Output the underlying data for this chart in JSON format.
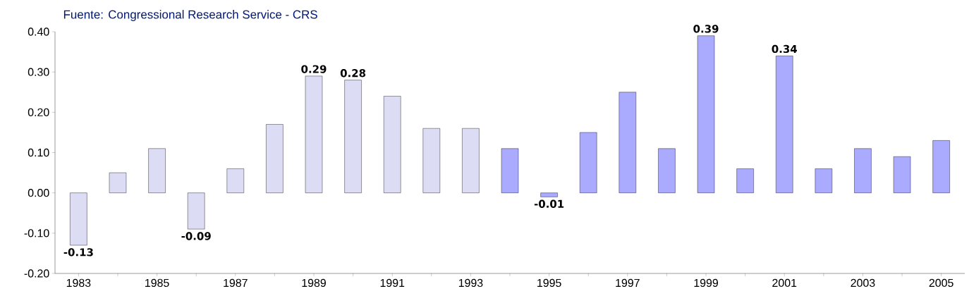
{
  "chart_data": {
    "type": "bar",
    "title": "Fuente: Congressional Research Service - CRS",
    "categories": [
      "1983",
      null,
      "1985",
      null,
      "1987",
      null,
      "1989",
      null,
      "1991",
      null,
      "1993",
      null,
      "1995",
      null,
      "1997",
      null,
      "1999",
      null,
      "2001",
      null,
      "2003",
      null,
      "2005"
    ],
    "values": [
      -0.13,
      0.05,
      0.11,
      -0.09,
      0.06,
      0.17,
      0.29,
      0.28,
      0.24,
      0.16,
      0.16,
      0.11,
      -0.01,
      0.15,
      0.25,
      0.11,
      0.39,
      0.06,
      0.34,
      0.06,
      0.11,
      0.09,
      0.13
    ],
    "value_labels": [
      "-0.13",
      null,
      null,
      "-0.09",
      null,
      null,
      "0.29",
      "0.28",
      null,
      null,
      null,
      null,
      "-0.01",
      null,
      null,
      null,
      "0.39",
      null,
      "0.34",
      null,
      null,
      null,
      null
    ],
    "colors": [
      "#dcdcf5",
      "#dcdcf5",
      "#dcdcf5",
      "#dcdcf5",
      "#dcdcf5",
      "#dcdcf5",
      "#dcdcf5",
      "#dcdcf5",
      "#dcdcf5",
      "#dcdcf5",
      "#dcdcf5",
      "#aaaaff",
      "#aaaaff",
      "#aaaaff",
      "#aaaaff",
      "#aaaaff",
      "#aaaaff",
      "#aaaaff",
      "#aaaaff",
      "#aaaaff",
      "#aaaaff",
      "#aaaaff",
      "#aaaaff"
    ],
    "ylim": [
      -0.2,
      0.4
    ],
    "yticks": [
      {
        "value": -0.2,
        "label": "-0.20"
      },
      {
        "value": -0.1,
        "label": "-0.10"
      },
      {
        "value": 0,
        "label": "0.00"
      },
      {
        "value": 0.1,
        "label": "0.10"
      },
      {
        "value": 0.2,
        "label": "0.20"
      },
      {
        "value": 0.3,
        "label": "0.30"
      },
      {
        "value": 0.4,
        "label": "0.40"
      }
    ],
    "grid": false
  }
}
